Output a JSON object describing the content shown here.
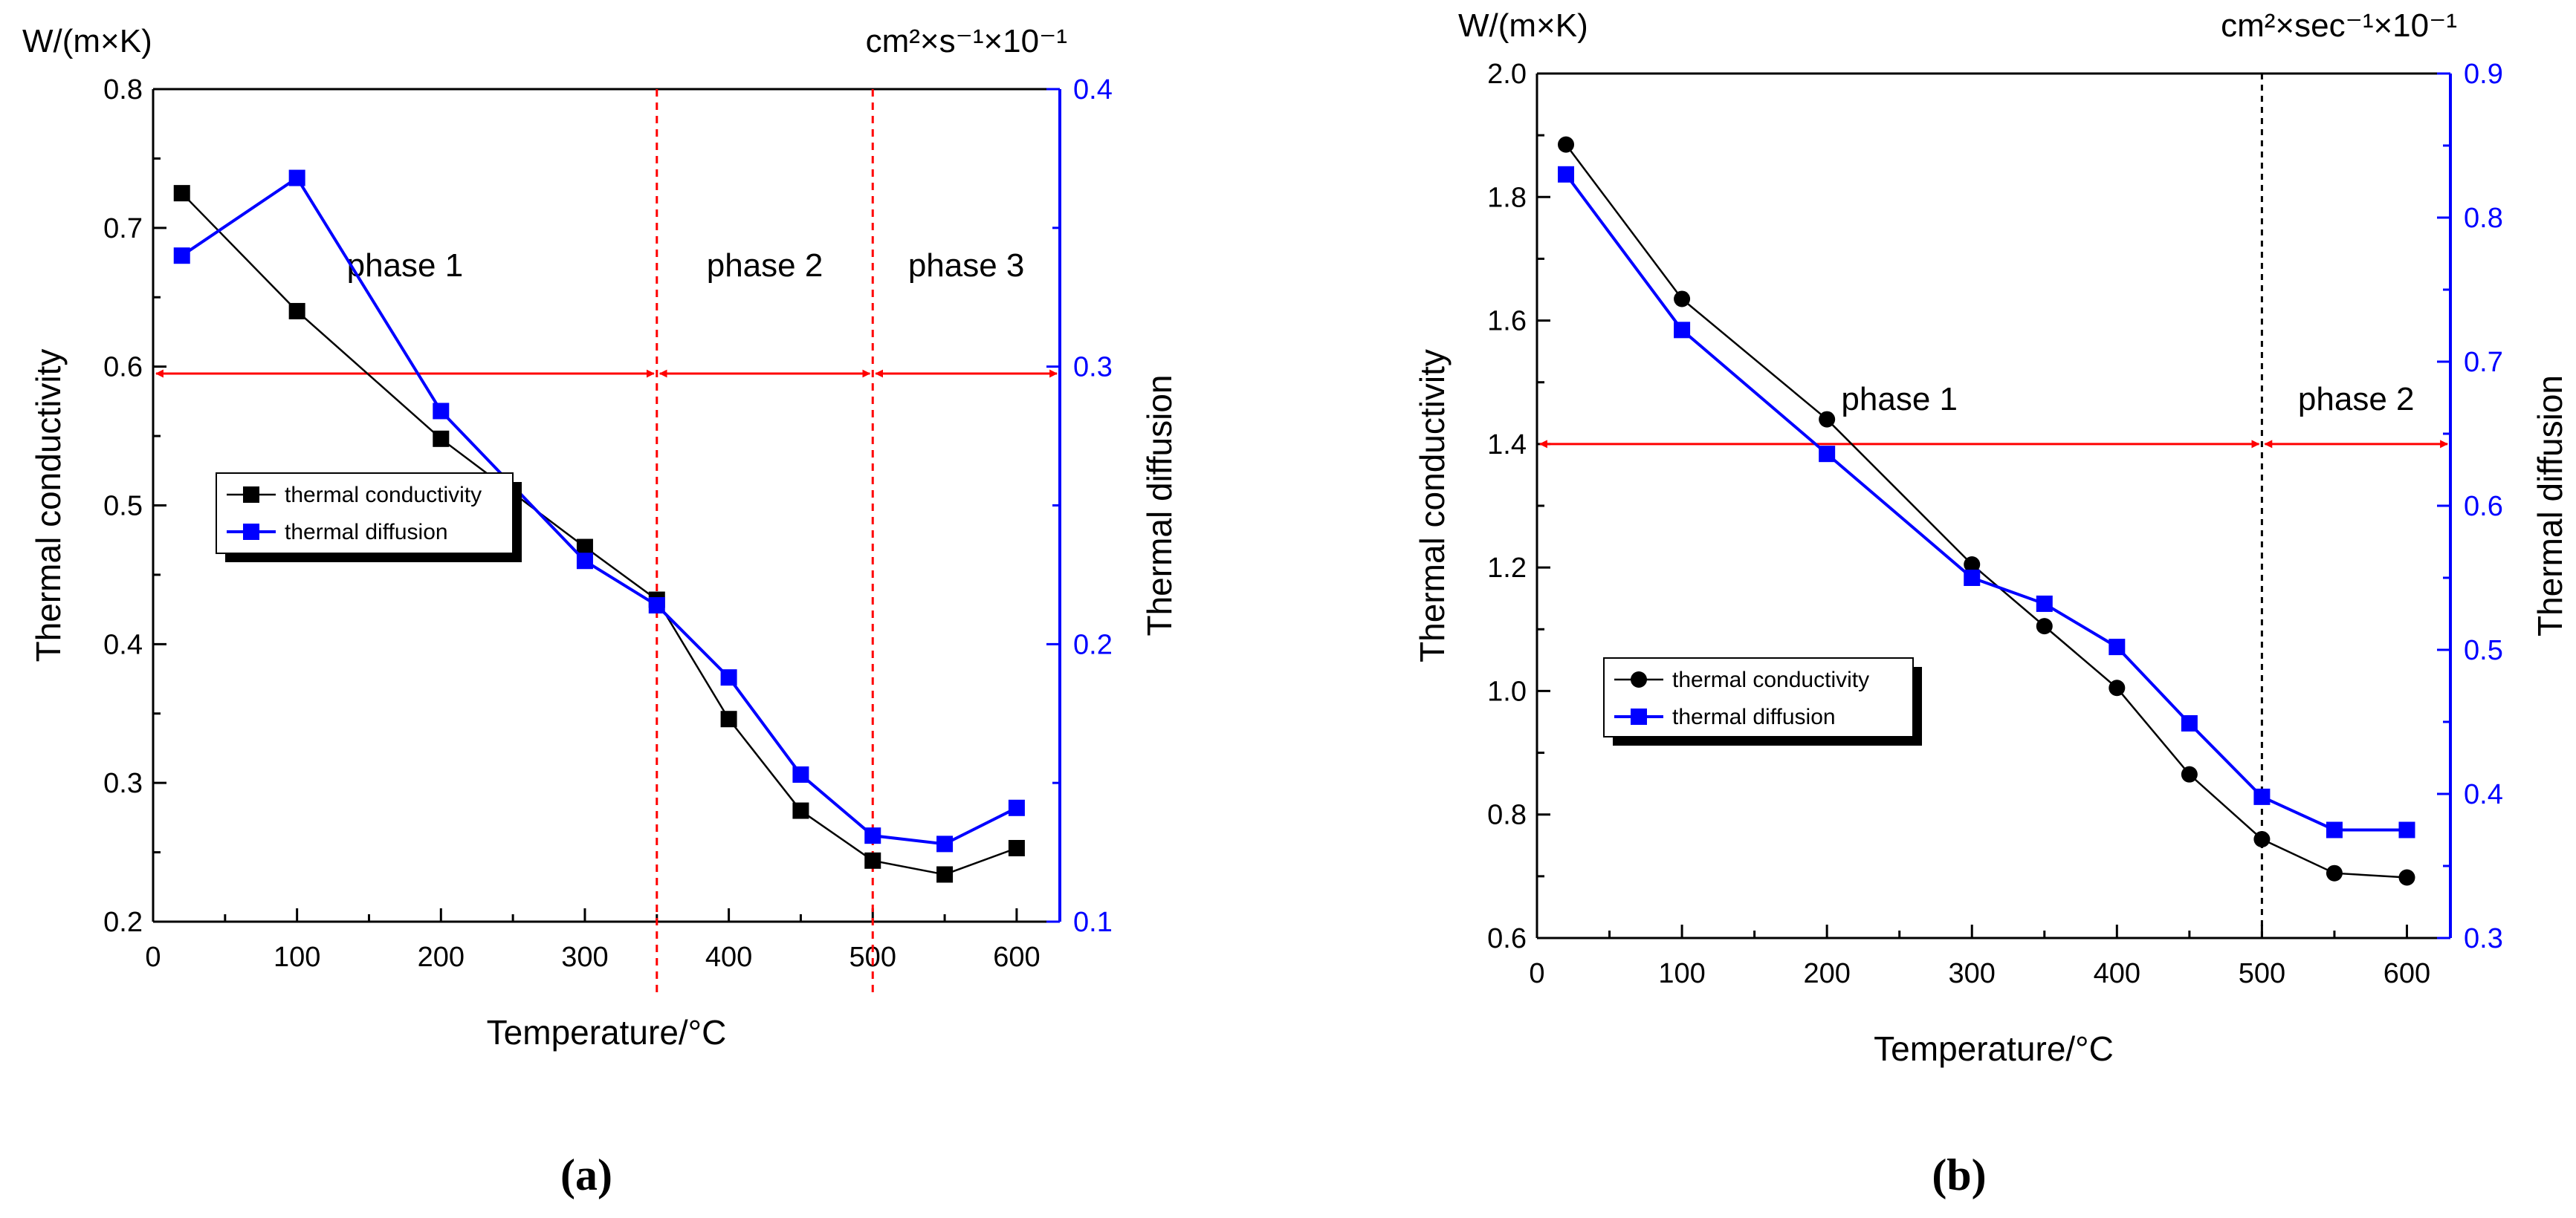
{
  "chart_data": [
    {
      "type": "line",
      "caption": "(a)",
      "xlabel": "Temperature/°C",
      "ylabel": "Thermal conductivity",
      "ylabel_unit": "W/(m×K)",
      "y2label": "Thermal diffusion",
      "y2label_unit": "cm²×s⁻¹×10⁻¹",
      "xlim": [
        0,
        630
      ],
      "ylim": [
        0.2,
        0.8
      ],
      "y2lim": [
        0.1,
        0.4
      ],
      "xticks": [
        0,
        100,
        200,
        300,
        400,
        500,
        600
      ],
      "yticks": [
        0.2,
        0.3,
        0.4,
        0.5,
        0.6,
        0.7,
        0.8
      ],
      "y2ticks": [
        0.1,
        0.2,
        0.3,
        0.4
      ],
      "x": [
        20,
        100,
        200,
        300,
        350,
        400,
        450,
        500,
        550,
        600
      ],
      "series": [
        {
          "name": "thermal conductivity",
          "axis": "left",
          "color": "#000000",
          "marker": "square",
          "values": [
            0.725,
            0.64,
            0.548,
            0.47,
            0.432,
            0.346,
            0.28,
            0.244,
            0.234,
            0.253
          ]
        },
        {
          "name": "thermal diffusion",
          "axis": "right",
          "color": "#0000ff",
          "marker": "square",
          "values": [
            0.34,
            0.368,
            0.284,
            0.23,
            0.214,
            0.188,
            0.153,
            0.131,
            0.128,
            0.141
          ]
        }
      ],
      "phase_boundaries": [
        350,
        500
      ],
      "phase_boundary_color": "#ff0000",
      "phases": [
        {
          "label": "phase 1",
          "from": 0,
          "to": 350
        },
        {
          "label": "phase 2",
          "from": 350,
          "to": 500
        },
        {
          "label": "phase 3",
          "from": 500,
          "to": 630
        }
      ],
      "phase_arrow_y": 0.595,
      "phase_arrow_color": "#ff0000",
      "legend_position": "left-middle"
    },
    {
      "type": "line",
      "caption": "(b)",
      "xlabel": "Temperature/°C",
      "ylabel": "Thermal conductivity",
      "ylabel_unit": "W/(m×K)",
      "y2label": "Thermal diffusion",
      "y2label_unit": "cm²×sec⁻¹×10⁻¹",
      "xlim": [
        0,
        630
      ],
      "ylim": [
        0.6,
        2.0
      ],
      "y2lim": [
        0.3,
        0.9
      ],
      "xticks": [
        0,
        100,
        200,
        300,
        400,
        500,
        600
      ],
      "yticks": [
        0.6,
        0.8,
        1.0,
        1.2,
        1.4,
        1.6,
        1.8,
        2.0
      ],
      "y2ticks": [
        0.3,
        0.4,
        0.5,
        0.6,
        0.7,
        0.8,
        0.9
      ],
      "x": [
        20,
        100,
        200,
        300,
        350,
        400,
        450,
        500,
        550,
        600
      ],
      "series": [
        {
          "name": "thermal conductivity",
          "axis": "left",
          "color": "#000000",
          "marker": "circle",
          "values": [
            1.885,
            1.635,
            1.44,
            1.205,
            1.105,
            1.005,
            0.865,
            0.76,
            0.705,
            0.698
          ]
        },
        {
          "name": "thermal diffusion",
          "axis": "right",
          "color": "#0000ff",
          "marker": "square",
          "values": [
            0.83,
            0.722,
            0.636,
            0.55,
            0.532,
            0.502,
            0.449,
            0.398,
            0.375,
            0.375
          ]
        }
      ],
      "phase_boundaries": [
        500
      ],
      "phase_boundary_color": "#000000",
      "phases": [
        {
          "label": "phase 1",
          "from": 0,
          "to": 500
        },
        {
          "label": "phase 2",
          "from": 500,
          "to": 630
        }
      ],
      "phase_arrow_y": 1.4,
      "phase_arrow_color": "#ff0000",
      "legend_position": "left-lower"
    }
  ]
}
